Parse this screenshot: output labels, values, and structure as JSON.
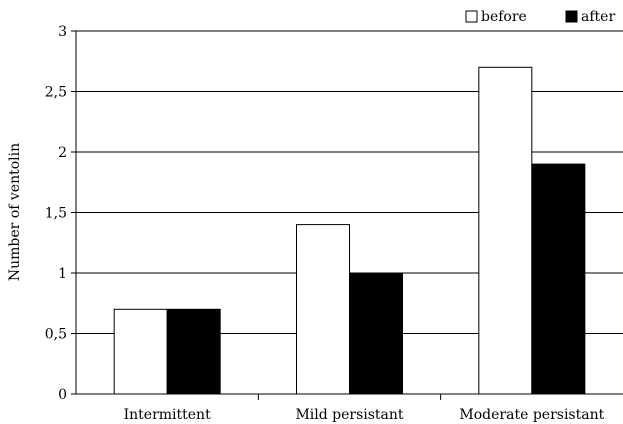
{
  "chart_data": {
    "type": "bar",
    "categories": [
      "Intermittent",
      "Mild persistant",
      "Moderate persistant"
    ],
    "series": [
      {
        "name": "before",
        "values": [
          0.7,
          1.4,
          2.7
        ],
        "fill": "#ffffff"
      },
      {
        "name": "after",
        "values": [
          0.7,
          1.0,
          1.9
        ],
        "fill": "#000000"
      }
    ],
    "ylabel": "Number of ventolin",
    "ylim": [
      0,
      3
    ],
    "yticks": [
      0,
      0.5,
      1,
      1.5,
      2,
      2.5,
      3
    ],
    "ytick_labels": [
      "0",
      "0,5",
      "1",
      "1,5",
      "2",
      "2,5",
      "3"
    ],
    "grid": true,
    "legend": "top-right"
  }
}
